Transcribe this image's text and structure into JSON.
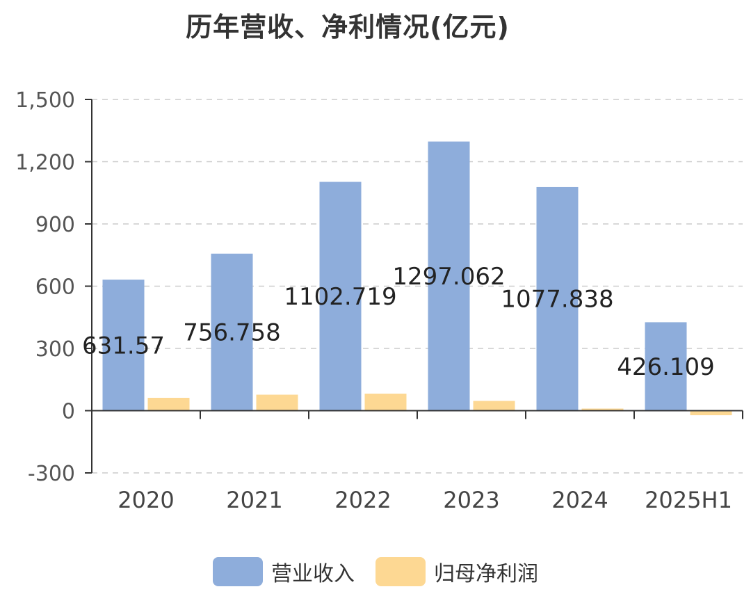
{
  "chart_data": {
    "type": "bar",
    "title": "历年营收、净利情况(亿元)",
    "categories": [
      "2020",
      "2021",
      "2022",
      "2023",
      "2024",
      "2025H1"
    ],
    "series": [
      {
        "name": "营业收入",
        "color": "#8eaddb",
        "values": [
          631.57,
          756.758,
          1102.719,
          1297.062,
          1077.838,
          426.109
        ],
        "labels": [
          "631.57",
          "756.758",
          "1102.719",
          "1297.062",
          "1077.838",
          "426.109"
        ]
      },
      {
        "name": "归母净利润",
        "color": "#fdd893",
        "values": [
          62,
          77,
          82,
          47,
          10,
          -22
        ]
      }
    ],
    "ylim": [
      -300,
      1500
    ],
    "yticks": [
      -300,
      0,
      300,
      600,
      900,
      1200,
      1500
    ],
    "ytick_labels": [
      "-300",
      "0",
      "300",
      "600",
      "900",
      "1,200",
      "1,500"
    ],
    "grid": true,
    "legend_position": "bottom-center"
  }
}
